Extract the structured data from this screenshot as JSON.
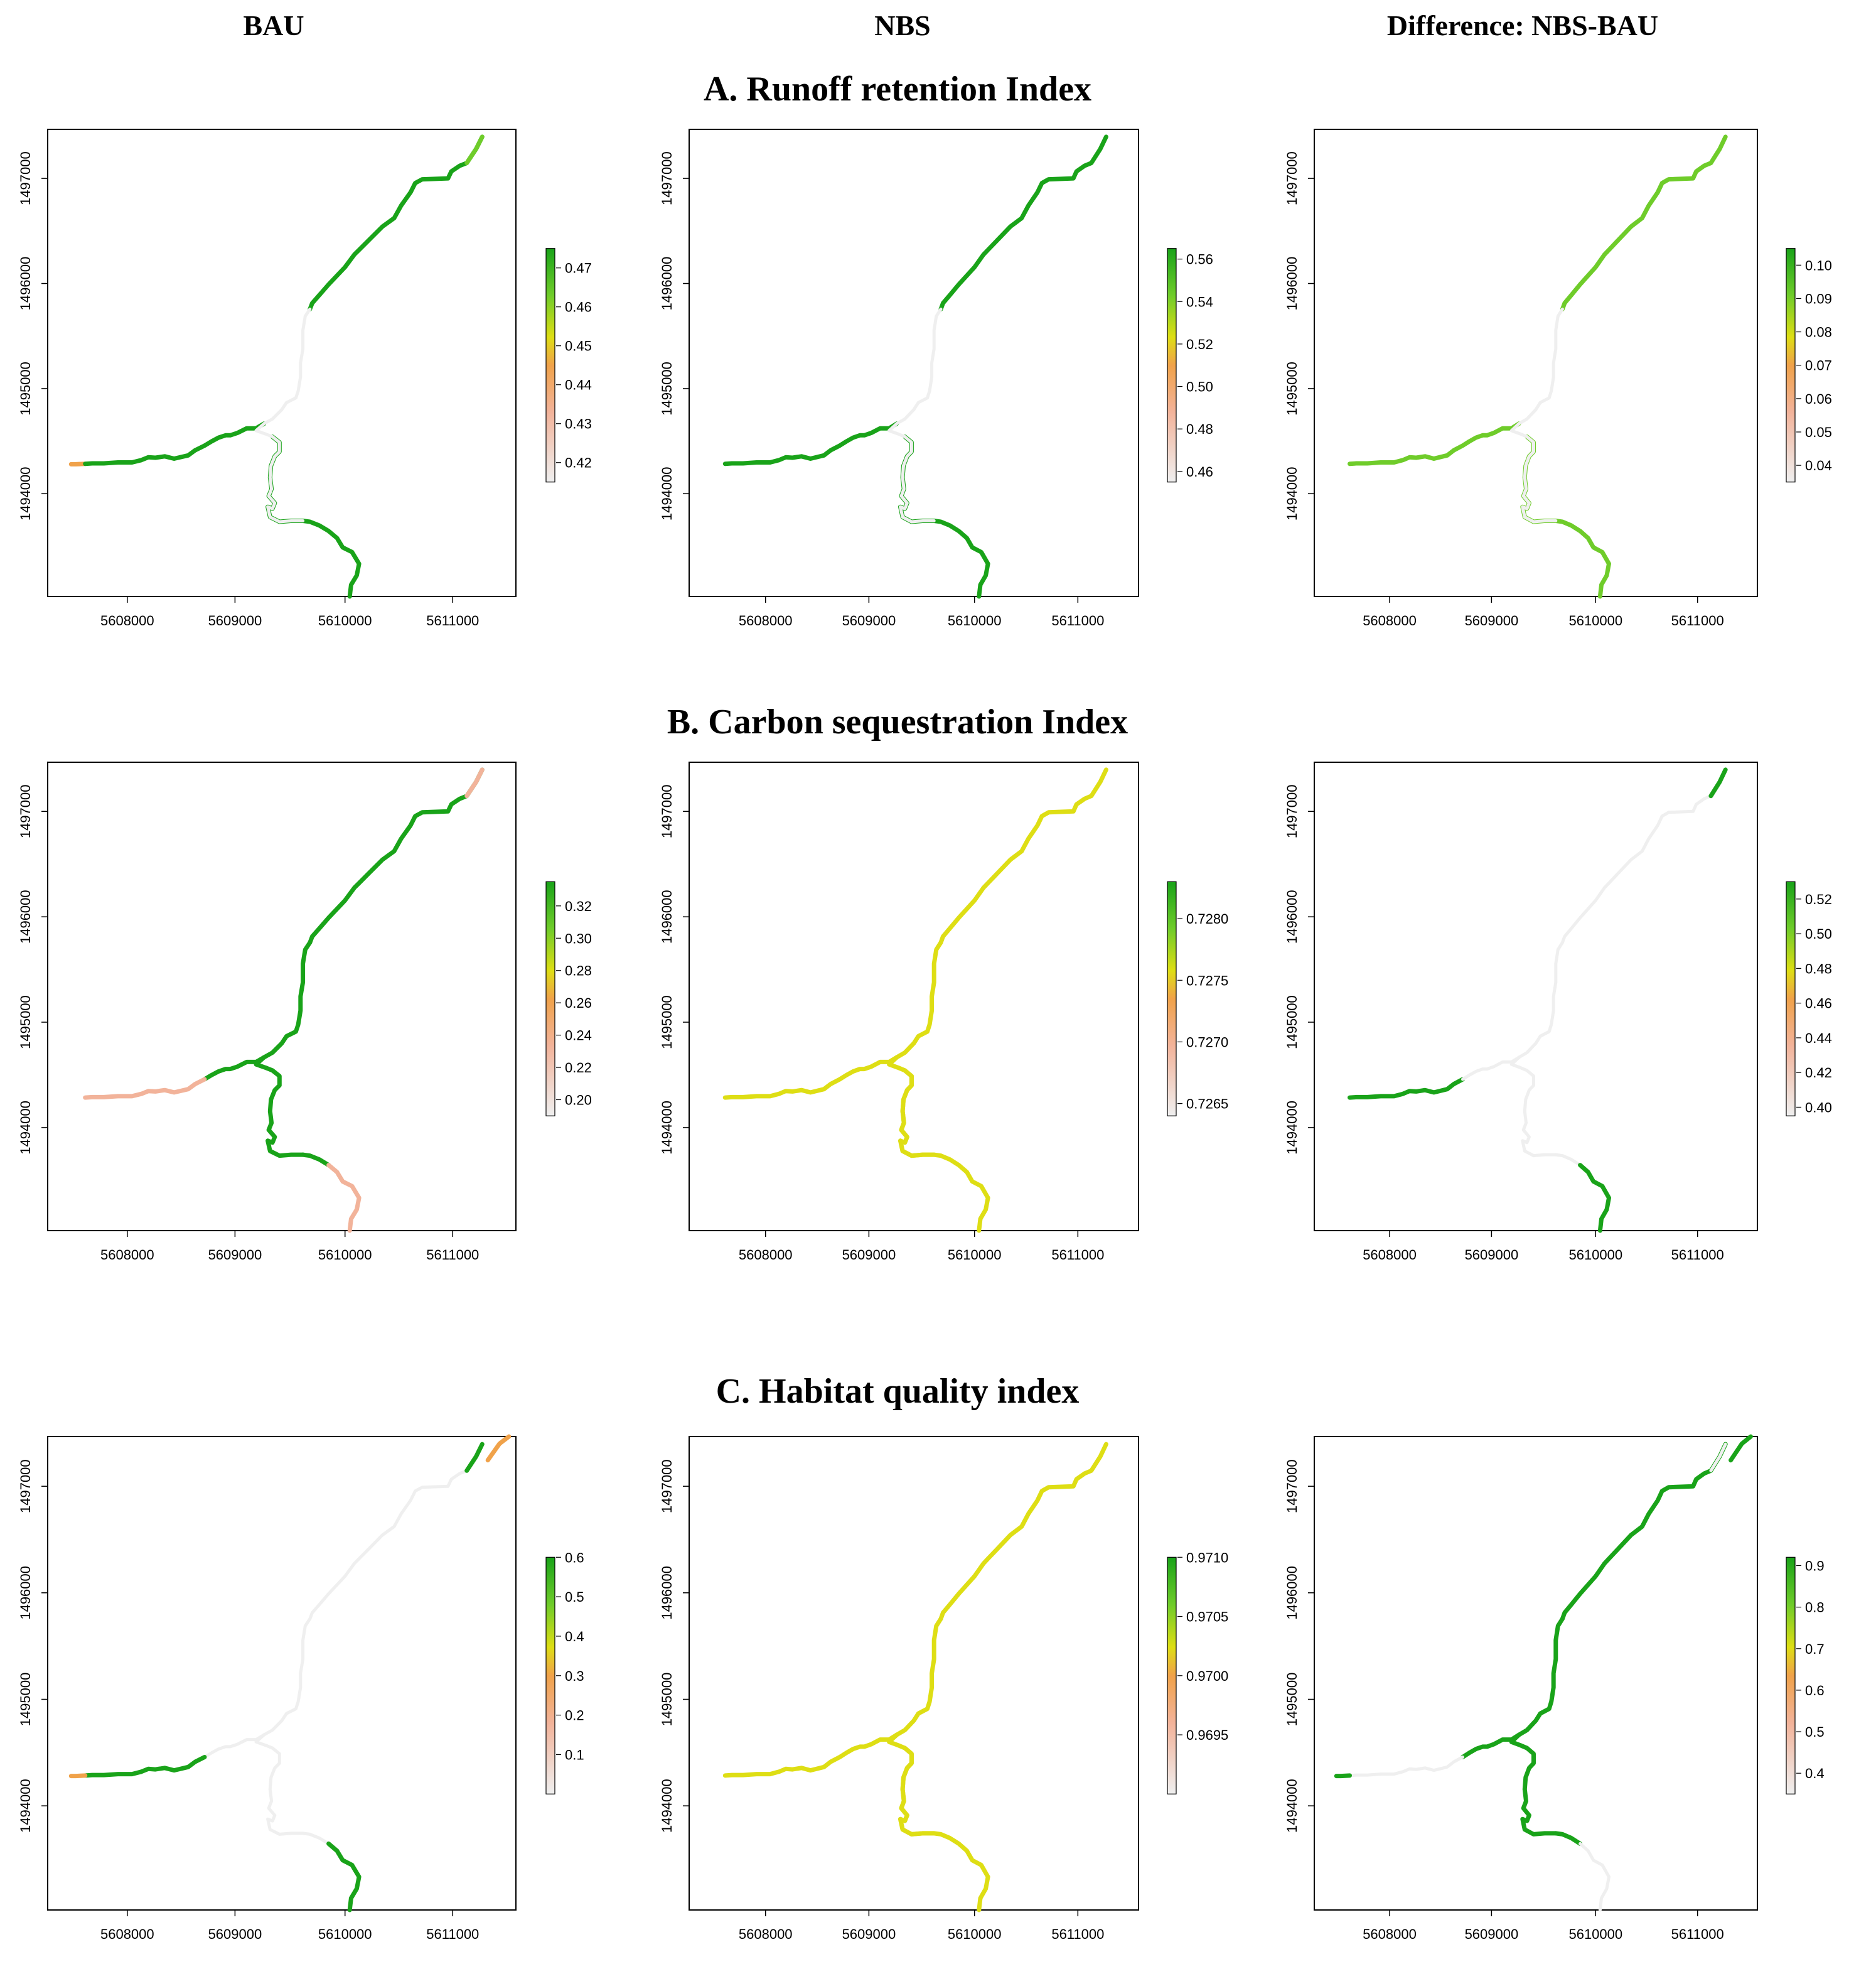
{
  "column_headers": [
    "BAU",
    "NBS",
    "Difference: NBS-BAU"
  ],
  "row_titles": [
    "A. Runoff retention Index",
    "B. Carbon sequestration Index",
    "C. Habitat quality index"
  ],
  "colors": {
    "frame": "#000000",
    "green": "#19a319",
    "lightgreen": "#6fcc2a",
    "yellow": "#dede14",
    "orange": "#f0a24a",
    "salmon": "#f2b39a",
    "lightgrey": "#efefef"
  },
  "chart_data": [
    {
      "type": "map",
      "panel": "A-BAU",
      "x_ticks": [
        "5608000",
        "5609000",
        "5610000",
        "5611000"
      ],
      "y_ticks": [
        "1494000",
        "1495000",
        "1496000",
        "1497000"
      ],
      "legend_ticks": [
        "0.47",
        "0.46",
        "0.45",
        "0.44",
        "0.43",
        "0.42"
      ],
      "legend_range": [
        0.415,
        0.475
      ],
      "segments": [
        {
          "seg": "upper",
          "color": "green"
        },
        {
          "seg": "upperTip",
          "color": "lightgreen"
        },
        {
          "seg": "westStart",
          "color": "orange"
        },
        {
          "seg": "west",
          "color": "green"
        },
        {
          "seg": "south",
          "color": "green"
        },
        {
          "seg": "mid",
          "color": "lightgrey"
        },
        {
          "seg": "junction",
          "color": "lightgrey"
        },
        {
          "seg": "southLink",
          "color": "lightgrey"
        }
      ]
    },
    {
      "type": "map",
      "panel": "A-NBS",
      "x_ticks": [
        "5608000",
        "5609000",
        "5610000",
        "5611000"
      ],
      "y_ticks": [
        "1494000",
        "1495000",
        "1496000",
        "1497000"
      ],
      "legend_ticks": [
        "0.56",
        "0.54",
        "0.52",
        "0.50",
        "0.48",
        "0.46"
      ],
      "legend_range": [
        0.455,
        0.565
      ],
      "segments": [
        {
          "seg": "upper",
          "color": "green"
        },
        {
          "seg": "west",
          "color": "green"
        },
        {
          "seg": "south",
          "color": "green"
        },
        {
          "seg": "mid",
          "color": "lightgrey"
        },
        {
          "seg": "junction",
          "color": "lightgrey"
        },
        {
          "seg": "southLink",
          "color": "lightgrey"
        }
      ]
    },
    {
      "type": "map",
      "panel": "A-Diff",
      "x_ticks": [
        "5608000",
        "5609000",
        "5610000",
        "5611000"
      ],
      "y_ticks": [
        "1494000",
        "1495000",
        "1496000",
        "1497000"
      ],
      "legend_ticks": [
        "0.10",
        "0.09",
        "0.08",
        "0.07",
        "0.06",
        "0.05",
        "0.04"
      ],
      "legend_range": [
        0.035,
        0.105
      ],
      "segments": [
        {
          "seg": "upper",
          "color": "lightgreen"
        },
        {
          "seg": "west",
          "color": "lightgreen"
        },
        {
          "seg": "south",
          "color": "lightgreen"
        },
        {
          "seg": "mid",
          "color": "lightgrey"
        },
        {
          "seg": "junction",
          "color": "lightgrey"
        },
        {
          "seg": "southLink",
          "color": "lightgrey"
        }
      ]
    },
    {
      "type": "map",
      "panel": "B-BAU",
      "x_ticks": [
        "5608000",
        "5609000",
        "5610000",
        "5611000"
      ],
      "y_ticks": [
        "1494000",
        "1495000",
        "1496000",
        "1497000"
      ],
      "legend_ticks": [
        "0.32",
        "0.30",
        "0.28",
        "0.26",
        "0.24",
        "0.22",
        "0.20"
      ],
      "legend_range": [
        0.19,
        0.335
      ],
      "segments": [
        {
          "seg": "upper",
          "color": "green"
        },
        {
          "seg": "upperTip",
          "color": "salmon"
        },
        {
          "seg": "mid",
          "color": "green"
        },
        {
          "seg": "junction",
          "color": "green"
        },
        {
          "seg": "westNear",
          "color": "green"
        },
        {
          "seg": "westFar",
          "color": "salmon"
        },
        {
          "seg": "southLink",
          "color": "green"
        },
        {
          "seg": "southNear",
          "color": "green"
        },
        {
          "seg": "southFar",
          "color": "salmon"
        }
      ]
    },
    {
      "type": "map",
      "panel": "B-NBS",
      "x_ticks": [
        "5608000",
        "5609000",
        "5610000",
        "5611000"
      ],
      "y_ticks": [
        "1494000",
        "1495000",
        "1496000",
        "1497000"
      ],
      "legend_ticks": [
        "0.7280",
        "0.7275",
        "0.7270",
        "0.7265"
      ],
      "legend_range": [
        0.7264,
        0.7283
      ],
      "segments": [
        {
          "seg": "upper",
          "color": "yellow"
        },
        {
          "seg": "mid",
          "color": "yellow"
        },
        {
          "seg": "junction",
          "color": "yellow"
        },
        {
          "seg": "west",
          "color": "yellow"
        },
        {
          "seg": "southLink",
          "color": "yellow"
        },
        {
          "seg": "south",
          "color": "yellow"
        }
      ]
    },
    {
      "type": "map",
      "panel": "B-Diff",
      "x_ticks": [
        "5608000",
        "5609000",
        "5610000",
        "5611000"
      ],
      "y_ticks": [
        "1494000",
        "1495000",
        "1496000",
        "1497000"
      ],
      "legend_ticks": [
        "0.52",
        "0.50",
        "0.48",
        "0.46",
        "0.44",
        "0.42",
        "0.40"
      ],
      "legend_range": [
        0.395,
        0.53
      ],
      "segments": [
        {
          "seg": "upper",
          "color": "lightgrey"
        },
        {
          "seg": "upperTip",
          "color": "green"
        },
        {
          "seg": "mid",
          "color": "lightgrey"
        },
        {
          "seg": "junction",
          "color": "lightgrey"
        },
        {
          "seg": "westFar",
          "color": "green"
        },
        {
          "seg": "westNear",
          "color": "lightgrey"
        },
        {
          "seg": "southLink",
          "color": "lightgrey"
        },
        {
          "seg": "southNear",
          "color": "lightgrey"
        },
        {
          "seg": "southFar",
          "color": "green"
        }
      ]
    },
    {
      "type": "map",
      "panel": "C-BAU",
      "x_ticks": [
        "5608000",
        "5609000",
        "5610000",
        "5611000"
      ],
      "y_ticks": [
        "1494000",
        "1495000",
        "1496000",
        "1497000"
      ],
      "legend_ticks": [
        "0.6",
        "0.5",
        "0.4",
        "0.3",
        "0.2",
        "0.1"
      ],
      "legend_range": [
        0.0,
        0.6
      ],
      "segments": [
        {
          "seg": "upper",
          "color": "lightgrey"
        },
        {
          "seg": "upperTip",
          "color": "green"
        },
        {
          "seg": "upperEnd",
          "color": "orange"
        },
        {
          "seg": "mid",
          "color": "lightgrey"
        },
        {
          "seg": "junction",
          "color": "lightgrey"
        },
        {
          "seg": "westNear",
          "color": "lightgrey"
        },
        {
          "seg": "westFar",
          "color": "green"
        },
        {
          "seg": "westStart",
          "color": "orange"
        },
        {
          "seg": "southLink",
          "color": "lightgrey"
        },
        {
          "seg": "southNear",
          "color": "lightgrey"
        },
        {
          "seg": "southFar",
          "color": "green"
        }
      ]
    },
    {
      "type": "map",
      "panel": "C-NBS",
      "x_ticks": [
        "5608000",
        "5609000",
        "5610000",
        "5611000"
      ],
      "y_ticks": [
        "1494000",
        "1495000",
        "1496000",
        "1497000"
      ],
      "legend_ticks": [
        "0.9710",
        "0.9705",
        "0.9700",
        "0.9695"
      ],
      "legend_range": [
        0.969,
        0.971
      ],
      "segments": [
        {
          "seg": "upper",
          "color": "yellow"
        },
        {
          "seg": "mid",
          "color": "yellow"
        },
        {
          "seg": "junction",
          "color": "yellow"
        },
        {
          "seg": "west",
          "color": "yellow"
        },
        {
          "seg": "southLink",
          "color": "yellow"
        },
        {
          "seg": "south",
          "color": "yellow"
        }
      ]
    },
    {
      "type": "map",
      "panel": "C-Diff",
      "x_ticks": [
        "5608000",
        "5609000",
        "5610000",
        "5611000"
      ],
      "y_ticks": [
        "1494000",
        "1495000",
        "1496000",
        "1497000"
      ],
      "legend_ticks": [
        "0.9",
        "0.8",
        "0.7",
        "0.6",
        "0.5",
        "0.4"
      ],
      "legend_range": [
        0.35,
        0.92
      ],
      "segments": [
        {
          "seg": "upper",
          "color": "green"
        },
        {
          "seg": "upperTip",
          "color": "lightgrey"
        },
        {
          "seg": "upperEnd",
          "color": "green"
        },
        {
          "seg": "mid",
          "color": "green"
        },
        {
          "seg": "junction",
          "color": "green"
        },
        {
          "seg": "westNear",
          "color": "green"
        },
        {
          "seg": "westFar",
          "color": "lightgrey"
        },
        {
          "seg": "westStart",
          "color": "green"
        },
        {
          "seg": "southLink",
          "color": "green"
        },
        {
          "seg": "southNear",
          "color": "green"
        },
        {
          "seg": "southFar",
          "color": "lightgrey"
        }
      ]
    }
  ]
}
